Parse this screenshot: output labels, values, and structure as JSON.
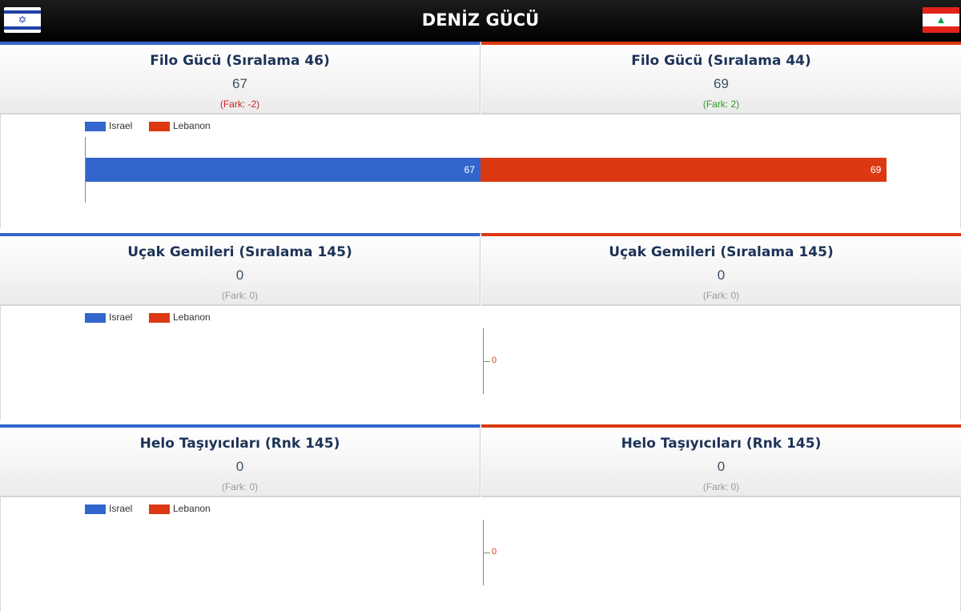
{
  "header": {
    "title": "DENİZ GÜCÜ",
    "left_flag": "israel-flag-icon",
    "right_flag": "lebanon-flag-icon"
  },
  "colors": {
    "israel": "#3366cc",
    "lebanon": "#dc3912"
  },
  "sections": [
    {
      "left": {
        "title": "Filo Gücü (Sıralama 46)",
        "value": "67",
        "diff": "(Fark: -2)"
      },
      "right": {
        "title": "Filo Gücü (Sıralama 44)",
        "value": "69",
        "diff": "(Fark: 2)"
      },
      "legend": [
        "Israel",
        "Lebanon"
      ]
    },
    {
      "left": {
        "title": "Uçak Gemileri (Sıralama 145)",
        "value": "0",
        "diff": "(Fark: 0)"
      },
      "right": {
        "title": "Uçak Gemileri (Sıralama 145)",
        "value": "0",
        "diff": "(Fark: 0)"
      },
      "legend": [
        "Israel",
        "Lebanon"
      ]
    },
    {
      "left": {
        "title": "Helo Taşıyıcıları (Rnk 145)",
        "value": "0",
        "diff": "(Fark: 0)"
      },
      "right": {
        "title": "Helo Taşıyıcıları (Rnk 145)",
        "value": "0",
        "diff": "(Fark: 0)"
      },
      "legend": [
        "Israel",
        "Lebanon"
      ]
    }
  ],
  "chart_data": [
    {
      "type": "bar",
      "categories": [
        ""
      ],
      "series": [
        {
          "name": "Israel",
          "values": [
            67
          ]
        },
        {
          "name": "Lebanon",
          "values": [
            69
          ]
        }
      ],
      "stacked": true,
      "data_labels": [
        "67",
        "69"
      ]
    },
    {
      "type": "bar",
      "categories": [
        ""
      ],
      "series": [
        {
          "name": "Israel",
          "values": [
            0
          ]
        },
        {
          "name": "Lebanon",
          "values": [
            0
          ]
        }
      ],
      "stacked": true,
      "data_labels": [
        "0"
      ]
    },
    {
      "type": "bar",
      "categories": [
        ""
      ],
      "series": [
        {
          "name": "Israel",
          "values": [
            0
          ]
        },
        {
          "name": "Lebanon",
          "values": [
            0
          ]
        }
      ],
      "stacked": true,
      "data_labels": [
        "0"
      ]
    }
  ]
}
